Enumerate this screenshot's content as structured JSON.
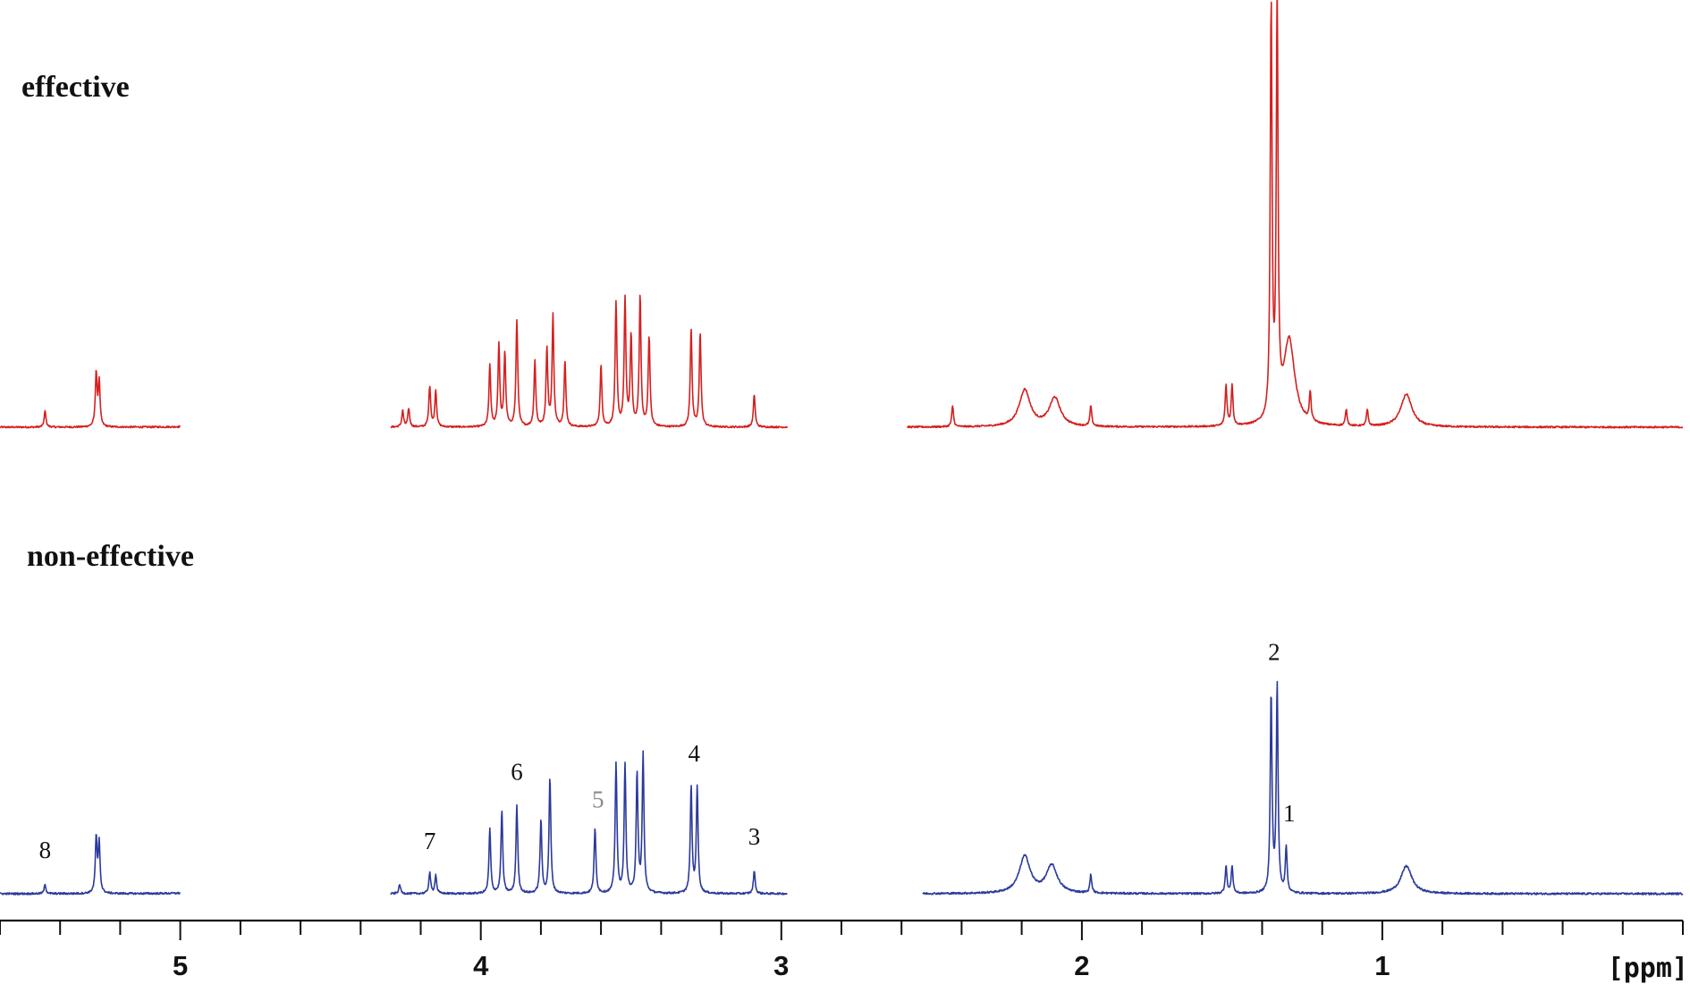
{
  "chart_data": {
    "type": "line",
    "xlabel": "[ppm]",
    "x_reversed": true,
    "xlim": [
      5.6,
      0.0
    ],
    "x_major_ticks": [
      5,
      4,
      3,
      2,
      1
    ],
    "x_minor_step": 0.2,
    "baseline_y": 0,
    "series": [
      {
        "name": "effective",
        "color": "#d42020",
        "segments": [
          [
            5.6,
            5.0
          ],
          [
            4.3,
            2.98
          ],
          [
            2.58,
            0.0
          ]
        ],
        "peaks": [
          {
            "x": 5.45,
            "y": 0.04
          },
          {
            "x": 5.28,
            "y": 0.13
          },
          {
            "x": 5.27,
            "y": 0.11
          },
          {
            "x": 4.85,
            "y": 0.055
          },
          {
            "x": 4.7,
            "y": 0.09
          },
          {
            "x": 4.68,
            "y": 0.09
          },
          {
            "x": 4.26,
            "y": 0.04
          },
          {
            "x": 4.24,
            "y": 0.045
          },
          {
            "x": 4.17,
            "y": 0.1
          },
          {
            "x": 4.15,
            "y": 0.09
          },
          {
            "x": 3.97,
            "y": 0.15
          },
          {
            "x": 3.94,
            "y": 0.2
          },
          {
            "x": 3.92,
            "y": 0.18
          },
          {
            "x": 3.88,
            "y": 0.26
          },
          {
            "x": 3.82,
            "y": 0.16
          },
          {
            "x": 3.78,
            "y": 0.19
          },
          {
            "x": 3.76,
            "y": 0.27
          },
          {
            "x": 3.72,
            "y": 0.16
          },
          {
            "x": 3.6,
            "y": 0.15
          },
          {
            "x": 3.55,
            "y": 0.3
          },
          {
            "x": 3.52,
            "y": 0.31
          },
          {
            "x": 3.5,
            "y": 0.22
          },
          {
            "x": 3.47,
            "y": 0.32
          },
          {
            "x": 3.44,
            "y": 0.22
          },
          {
            "x": 3.3,
            "y": 0.24
          },
          {
            "x": 3.27,
            "y": 0.23
          },
          {
            "x": 3.09,
            "y": 0.08
          },
          {
            "x": 2.43,
            "y": 0.05
          },
          {
            "x": 2.19,
            "y": 0.09
          },
          {
            "x": 2.09,
            "y": 0.07
          },
          {
            "x": 1.97,
            "y": 0.05
          },
          {
            "x": 1.52,
            "y": 0.1
          },
          {
            "x": 1.5,
            "y": 0.1
          },
          {
            "x": 1.37,
            "y": 1.0
          },
          {
            "x": 1.35,
            "y": 1.01
          },
          {
            "x": 1.31,
            "y": 0.21
          },
          {
            "x": 1.24,
            "y": 0.07
          },
          {
            "x": 1.12,
            "y": 0.04
          },
          {
            "x": 1.05,
            "y": 0.04
          },
          {
            "x": 0.92,
            "y": 0.08
          }
        ]
      },
      {
        "name": "non-effective",
        "color": "#2b3a9c",
        "segments": [
          [
            5.6,
            5.0
          ],
          [
            4.3,
            2.98
          ],
          [
            2.53,
            0.0
          ]
        ],
        "peaks": [
          {
            "x": 5.45,
            "y": 0.02
          },
          {
            "x": 5.28,
            "y": 0.12
          },
          {
            "x": 5.27,
            "y": 0.11
          },
          {
            "x": 4.85,
            "y": 0.065
          },
          {
            "x": 4.7,
            "y": 0.08
          },
          {
            "x": 4.68,
            "y": 0.08
          },
          {
            "x": 4.27,
            "y": 0.02
          },
          {
            "x": 4.17,
            "y": 0.045
          },
          {
            "x": 4.15,
            "y": 0.04
          },
          {
            "x": 3.97,
            "y": 0.14
          },
          {
            "x": 3.93,
            "y": 0.18
          },
          {
            "x": 3.88,
            "y": 0.19
          },
          {
            "x": 3.8,
            "y": 0.16
          },
          {
            "x": 3.77,
            "y": 0.25
          },
          {
            "x": 3.62,
            "y": 0.14
          },
          {
            "x": 3.55,
            "y": 0.28
          },
          {
            "x": 3.52,
            "y": 0.28
          },
          {
            "x": 3.48,
            "y": 0.26
          },
          {
            "x": 3.46,
            "y": 0.3
          },
          {
            "x": 3.3,
            "y": 0.23
          },
          {
            "x": 3.28,
            "y": 0.23
          },
          {
            "x": 3.09,
            "y": 0.05
          },
          {
            "x": 2.19,
            "y": 0.08
          },
          {
            "x": 2.1,
            "y": 0.06
          },
          {
            "x": 1.97,
            "y": 0.04
          },
          {
            "x": 1.52,
            "y": 0.06
          },
          {
            "x": 1.5,
            "y": 0.06
          },
          {
            "x": 1.37,
            "y": 0.43
          },
          {
            "x": 1.35,
            "y": 0.45
          },
          {
            "x": 1.32,
            "y": 0.1
          },
          {
            "x": 0.92,
            "y": 0.06
          }
        ],
        "annotations": [
          {
            "text": "8",
            "x": 5.45,
            "y": 0.05
          },
          {
            "text": "7",
            "x": 4.17,
            "y": 0.07
          },
          {
            "text": "6",
            "x": 3.88,
            "y": 0.22
          },
          {
            "text": "5",
            "x": 3.61,
            "y": 0.16,
            "muted": true
          },
          {
            "text": "4",
            "x": 3.29,
            "y": 0.26
          },
          {
            "text": "3",
            "x": 3.09,
            "y": 0.08
          },
          {
            "text": "2",
            "x": 1.36,
            "y": 0.48
          },
          {
            "text": "1",
            "x": 1.31,
            "y": 0.13
          }
        ]
      }
    ]
  }
}
